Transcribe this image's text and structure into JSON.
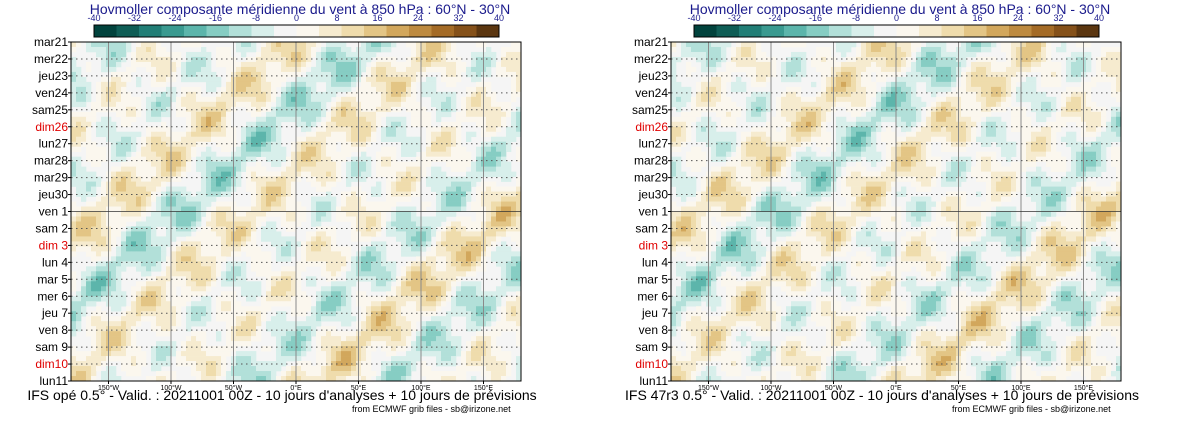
{
  "colorbar": {
    "ticks": [
      "-40",
      "-32",
      "-24",
      "-16",
      "-8",
      "0",
      "8",
      "16",
      "24",
      "32",
      "40"
    ],
    "colors": [
      "#01433d",
      "#0f5e56",
      "#217e76",
      "#3a9a90",
      "#5cb5ab",
      "#86cdc3",
      "#b2e0d9",
      "#d8efeb",
      "#f5f5f5",
      "#fbf7ee",
      "#f6ebcf",
      "#efdcac",
      "#e3c585",
      "#d2a75c",
      "#bd8a3f",
      "#a46b26",
      "#85511a",
      "#5b3610"
    ]
  },
  "panels": [
    {
      "title": "Hovmoller composante méridienne du vent à 850 hPa : 60°N - 30°N",
      "footer": "IFS opé 0.5° - Valid. : 20211001 00Z - 10 jours d'analyses + 10 jours de prévisions",
      "credit": "from ECMWF grib files - sb@irizone.net"
    },
    {
      "title": "Hovmoller composante méridienne du vent à 850 hPa : 60°N - 30°N",
      "footer": "IFS 47r3 0.5° - Valid. : 20211001 00Z - 10 jours d'analyses + 10 jours de prévisions",
      "credit": "from ECMWF grib files - sb@irizone.net"
    }
  ],
  "chart_data": {
    "type": "heatmap",
    "y_dates": [
      "mar21",
      "mer22",
      "jeu23",
      "ven24",
      "sam25",
      "dim26",
      "lun27",
      "mar28",
      "mar29",
      "jeu30",
      "ven 1",
      "sam 2",
      "dim 3",
      "lun 4",
      "mar 5",
      "mer 6",
      "jeu 7",
      "ven 8",
      "sam 9",
      "dim10",
      "lun11"
    ],
    "sundays": [
      "dim26",
      "dim 3",
      "dim10"
    ],
    "analysis_end_date": "ven 1",
    "x_ticks": [
      "150°W",
      "100°W",
      "50°W",
      "0°E",
      "50°E",
      "100°E",
      "150°E"
    ],
    "x_tick_lons": [
      -150,
      -100,
      -50,
      0,
      50,
      100,
      150
    ],
    "x_range": [
      -180,
      180
    ],
    "color_range": [
      -40,
      40
    ]
  }
}
